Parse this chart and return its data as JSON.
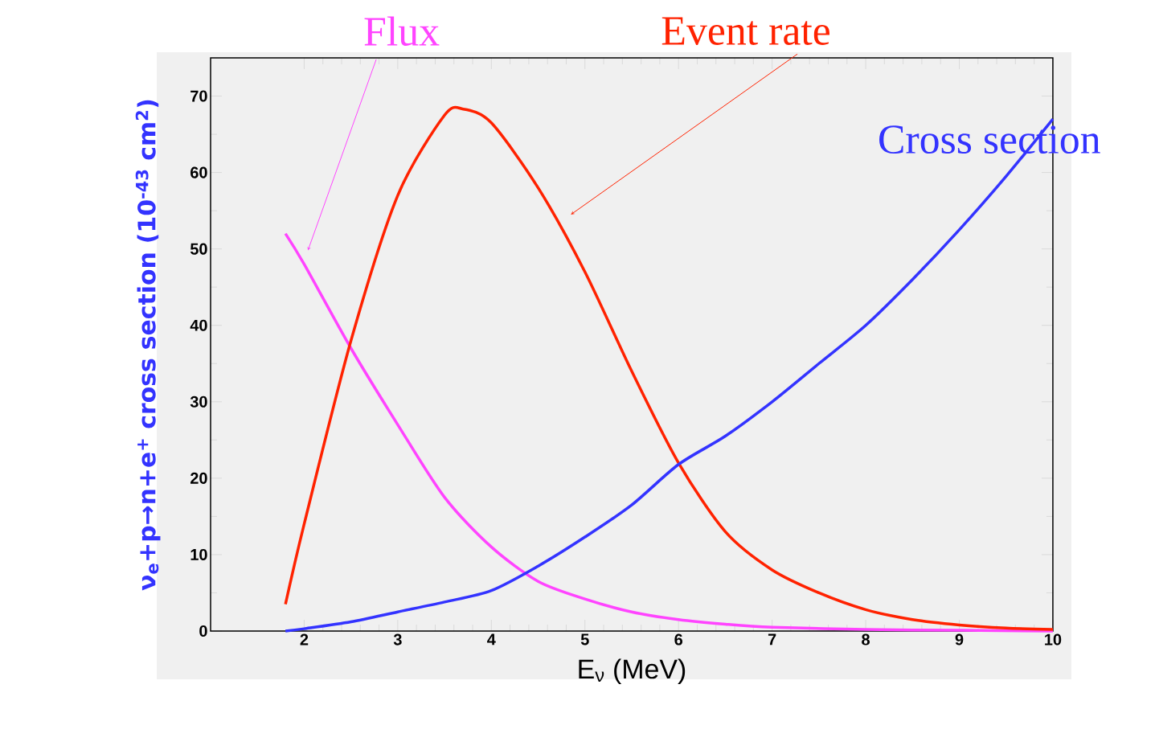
{
  "chart_data": {
    "type": "line",
    "xlabel": "E$_{ν}$ (MeV)",
    "ylabel": "ν$_{e}$+p→n+e$^{+}$ cross section (10$^{-43}$ cm$^{2}$)",
    "xlim": [
      1,
      10
    ],
    "ylim": [
      0,
      75
    ],
    "xticks": [
      2,
      3,
      4,
      5,
      6,
      7,
      8,
      9,
      10
    ],
    "yticks": [
      0,
      10,
      20,
      30,
      40,
      50,
      60,
      70
    ],
    "grid": false,
    "legend": false,
    "marker": "none",
    "line_style": "solid",
    "series": [
      {
        "name": "Flux",
        "color": "#ff44ff",
        "x": [
          1.8,
          2,
          2.5,
          3,
          3.5,
          4,
          4.5,
          5,
          5.5,
          6,
          6.5,
          7,
          8,
          9,
          10
        ],
        "values": [
          52,
          48,
          37,
          27,
          17.5,
          11,
          6.5,
          4.2,
          2.5,
          1.5,
          0.9,
          0.5,
          0.2,
          0.1,
          0
        ]
      },
      {
        "name": "Event rate",
        "color": "#ff2200",
        "x": [
          1.8,
          2,
          2.5,
          3,
          3.5,
          3.7,
          4,
          4.5,
          5,
          5.5,
          6,
          6.5,
          7,
          7.5,
          8,
          8.5,
          9,
          9.5,
          10
        ],
        "values": [
          3.5,
          14,
          38,
          57,
          67.5,
          68.3,
          66.5,
          58,
          47,
          34,
          22,
          13,
          8,
          5,
          2.8,
          1.5,
          0.8,
          0.4,
          0.2
        ]
      },
      {
        "name": "Cross section",
        "color": "#3333ff",
        "x": [
          1.8,
          2,
          2.5,
          3,
          3.5,
          4,
          4.5,
          5,
          5.5,
          6,
          6.5,
          7,
          7.5,
          8,
          8.5,
          9,
          9.5,
          10
        ],
        "values": [
          0,
          0.3,
          1.2,
          2.5,
          3.8,
          5.3,
          8.5,
          12.3,
          16.5,
          21.8,
          25.5,
          30,
          35,
          40,
          46,
          52.5,
          59.5,
          67
        ]
      }
    ]
  }
}
